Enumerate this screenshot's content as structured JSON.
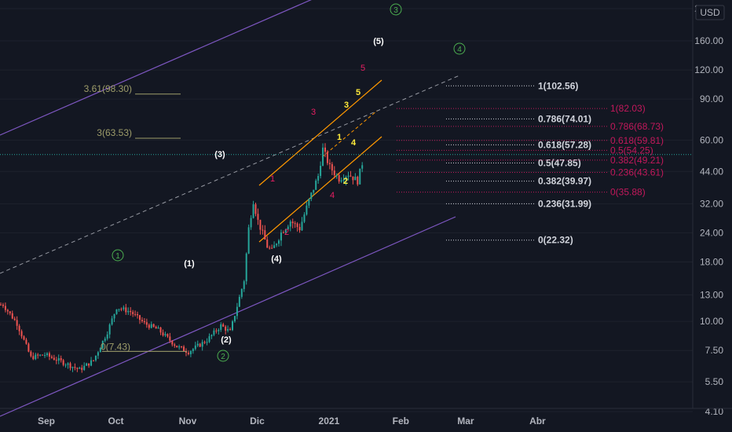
{
  "chart_data": {
    "type": "candlestick",
    "currency": "USD",
    "price_scale": "log",
    "last_price_approx": 52,
    "y_ticks": [
      "220.00",
      "160.00",
      "120.00",
      "90.00",
      "60.00",
      "44.00",
      "32.00",
      "24.00",
      "18.00",
      "13.00",
      "10.00",
      "7.50",
      "5.50",
      "4.10"
    ],
    "x_ticks": [
      "Sep",
      "Oct",
      "Nov",
      "Dic",
      "2021",
      "Feb",
      "Mar",
      "Abr"
    ],
    "price_path": [
      {
        "date": "Aug 14",
        "price": 11.8
      },
      {
        "date": "Aug 20",
        "price": 9.8
      },
      {
        "date": "Aug 26",
        "price": 7.0
      },
      {
        "date": "Sep 1",
        "price": 7.2
      },
      {
        "date": "Sep 10",
        "price": 6.6
      },
      {
        "date": "Sep 16",
        "price": 6.2
      },
      {
        "date": "Sep 22",
        "price": 6.8
      },
      {
        "date": "Sep 28",
        "price": 9.0
      },
      {
        "date": "Oct 2",
        "price": 11.5
      },
      {
        "date": "Oct 8",
        "price": 11.0
      },
      {
        "date": "Oct 14",
        "price": 9.8
      },
      {
        "date": "Oct 20",
        "price": 9.2
      },
      {
        "date": "Oct 28",
        "price": 7.8
      },
      {
        "date": "Nov 2",
        "price": 7.4
      },
      {
        "date": "Nov 10",
        "price": 8.3
      },
      {
        "date": "Nov 16",
        "price": 9.6
      },
      {
        "date": "Nov 20",
        "price": 9.0
      },
      {
        "date": "Nov 26",
        "price": 15.0
      },
      {
        "date": "Nov 28",
        "price": 25.0
      },
      {
        "date": "Nov 30",
        "price": 33.0
      },
      {
        "date": "Dec 2",
        "price": 27.0
      },
      {
        "date": "Dec 6",
        "price": 21.0
      },
      {
        "date": "Dec 8",
        "price": 20.0
      },
      {
        "date": "Dec 12",
        "price": 24.0
      },
      {
        "date": "Dec 16",
        "price": 27.0
      },
      {
        "date": "Dec 20",
        "price": 25.0
      },
      {
        "date": "Dec 24",
        "price": 33.0
      },
      {
        "date": "Dec 28",
        "price": 42.0
      },
      {
        "date": "Dec 30",
        "price": 55.0
      },
      {
        "date": "Jan 2",
        "price": 46.0
      },
      {
        "date": "Jan 6",
        "price": 41.0
      },
      {
        "date": "Jan 10",
        "price": 43.0
      },
      {
        "date": "Jan 14",
        "price": 40.0
      },
      {
        "date": "Jan 17",
        "price": 52.0
      }
    ],
    "fib_white": [
      {
        "label": "0(22.32)"
      },
      {
        "label": "0.236(31.99)"
      },
      {
        "label": "0.382(39.97)"
      },
      {
        "label": "0.5(47.85)"
      },
      {
        "label": "0.618(57.28)"
      },
      {
        "label": "0.786(74.01)"
      },
      {
        "label": "1(102.56)"
      }
    ],
    "fib_pink": [
      {
        "label": "0(35.88)"
      },
      {
        "label": "0.236(43.61)"
      },
      {
        "label": "0.382(49.21)"
      },
      {
        "label": "0.5(54.25)"
      },
      {
        "label": "0.618(59.81)"
      },
      {
        "label": "0.786(68.73)"
      },
      {
        "label": "1(82.03)"
      }
    ],
    "fib_olive": [
      {
        "label": "0(7.43)"
      },
      {
        "label": "3(63.53)"
      },
      {
        "label": "3.61(98.30)"
      }
    ],
    "wave_labels": {
      "white": [
        "(1)",
        "(2)",
        "(3)",
        "(4)",
        "(5)"
      ],
      "green": [
        "1",
        "2",
        "3",
        "4"
      ],
      "pink": [
        "1",
        "2",
        "3",
        "4",
        "5"
      ],
      "yellow": [
        "1",
        "2",
        "3",
        "4",
        "5"
      ]
    }
  },
  "colors": {
    "background": "#131722",
    "up": "#26a69a",
    "down": "#ef5350",
    "channel": "#7e57c2",
    "orange": "#ff9800",
    "fib_white": "#d1d4dc",
    "fib_pink": "#c2185b",
    "fib_olive": "#9e9d6a",
    "green": "#4caf50"
  }
}
